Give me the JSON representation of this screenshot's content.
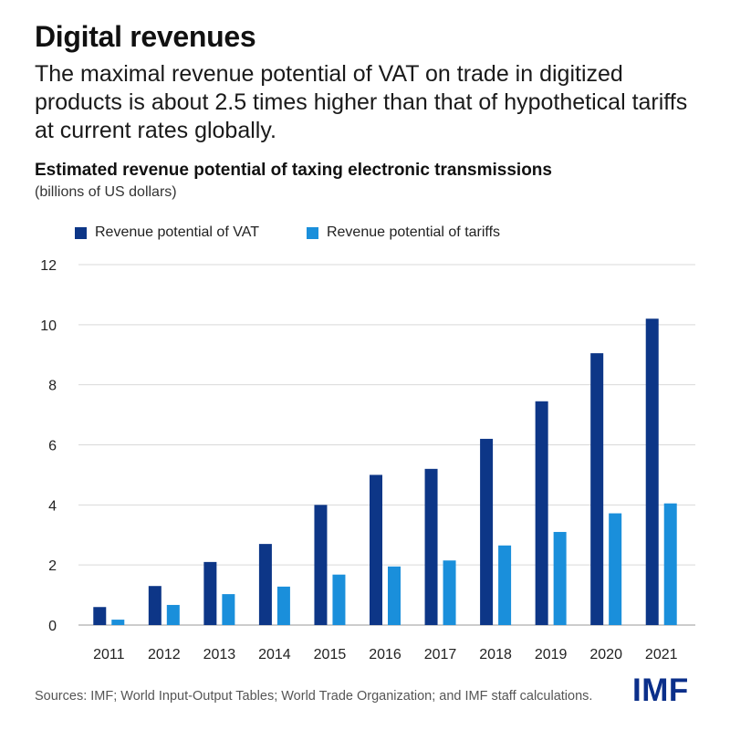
{
  "header": {
    "title": "Digital revenues",
    "subtitle": "The maximal revenue potential of VAT on trade in digitized products is about 2.5 times higher than that of hypothetical tariffs at current rates globally."
  },
  "footer": {
    "source": "Sources: IMF; World Input-Output Tables; World Trade Organization; and IMF staff calculations.",
    "logo_text": "IMF"
  },
  "chart_data": {
    "type": "bar",
    "title": "Estimated revenue potential of taxing electronic transmissions",
    "units": "(billions of US dollars)",
    "categories": [
      "2011",
      "2012",
      "2013",
      "2014",
      "2015",
      "2016",
      "2017",
      "2018",
      "2019",
      "2020",
      "2021"
    ],
    "series": [
      {
        "name": "Revenue potential of VAT",
        "color": "#0d3687",
        "values": [
          0.6,
          1.3,
          2.1,
          2.7,
          4.0,
          5.0,
          5.2,
          6.2,
          7.45,
          9.05,
          10.2
        ]
      },
      {
        "name": "Revenue potential of tariffs",
        "color": "#1a8fdb",
        "values": [
          0.18,
          0.67,
          1.03,
          1.28,
          1.68,
          1.95,
          2.15,
          2.65,
          3.1,
          3.72,
          4.05
        ]
      }
    ],
    "ylim": [
      0,
      12
    ],
    "yticks": [
      0,
      2,
      4,
      6,
      8,
      10,
      12
    ],
    "grid": true,
    "legend_position": "top-left"
  }
}
